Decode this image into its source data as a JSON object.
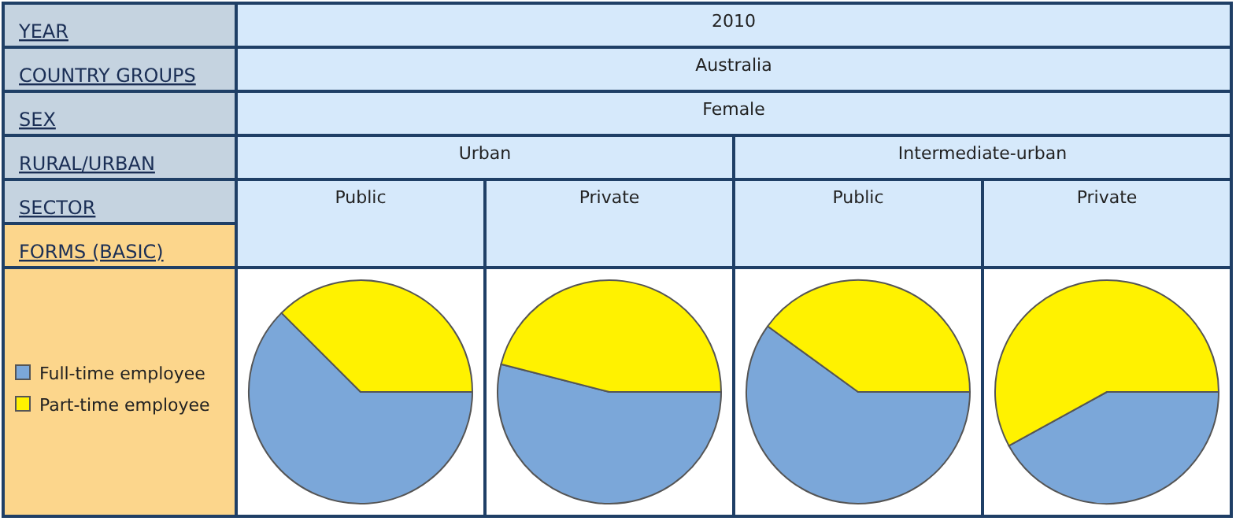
{
  "chart_data": [
    {
      "type": "other",
      "annotations": [
        "YEAR",
        "2010",
        "COUNTRY GROUPS",
        "Australia",
        "SEX",
        "Female",
        "RURAL/URBAN",
        "Urban",
        "Intermediate-urban",
        "SECTOR",
        "FORMS (BASIC)"
      ]
    },
    {
      "type": "pie",
      "title": "Public",
      "categories": [
        "Full-time employee",
        "Part-time employee"
      ],
      "values": [
        62.5,
        37.5
      ],
      "colors": [
        "#7ba7d9",
        "#fff200"
      ],
      "legend": "left"
    },
    {
      "type": "pie",
      "title": "Private",
      "categories": [
        null,
        null
      ],
      "values": [
        54,
        46
      ],
      "colors": [
        "#7ba7d9",
        "#fff200"
      ]
    },
    {
      "type": "pie",
      "title": "Public",
      "categories": [
        null,
        null
      ],
      "values": [
        60,
        40
      ],
      "colors": [
        "#7ba7d9",
        "#fff200"
      ]
    },
    {
      "type": "pie",
      "title": "Private",
      "categories": [
        null,
        null
      ],
      "values": [
        42,
        58
      ],
      "colors": [
        "#7ba7d9",
        "#fff200"
      ]
    }
  ]
}
